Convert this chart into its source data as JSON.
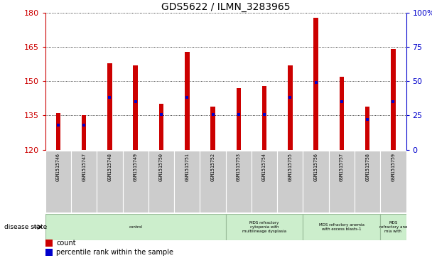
{
  "title": "GDS5622 / ILMN_3283965",
  "samples": [
    "GSM1515746",
    "GSM1515747",
    "GSM1515748",
    "GSM1515749",
    "GSM1515750",
    "GSM1515751",
    "GSM1515752",
    "GSM1515753",
    "GSM1515754",
    "GSM1515755",
    "GSM1515756",
    "GSM1515757",
    "GSM1515758",
    "GSM1515759"
  ],
  "counts": [
    136,
    135,
    158,
    157,
    140,
    163,
    139,
    147,
    148,
    157,
    178,
    152,
    139,
    164
  ],
  "percentile_ranks": [
    18,
    18,
    38,
    35,
    26,
    38,
    26,
    26,
    26,
    38,
    49,
    35,
    22,
    35
  ],
  "y_min": 120,
  "y_max": 180,
  "y_ticks": [
    120,
    135,
    150,
    165,
    180
  ],
  "y2_ticks": [
    0,
    25,
    50,
    75,
    100
  ],
  "bar_color": "#cc0000",
  "marker_color": "#0000cc",
  "disease_groups": [
    {
      "label": "control",
      "start": 0,
      "end": 7
    },
    {
      "label": "MDS refractory\ncytopenia with\nmultilineage dysplasia",
      "start": 7,
      "end": 10
    },
    {
      "label": "MDS refractory anemia\nwith excess blasts-1",
      "start": 10,
      "end": 13
    },
    {
      "label": "MDS\nrefractory ane\nmia with",
      "start": 13,
      "end": 14
    }
  ],
  "group_color": "#cceecc",
  "group_edge_color": "#99bb99",
  "sample_box_color": "#cccccc",
  "bar_width": 0.18
}
